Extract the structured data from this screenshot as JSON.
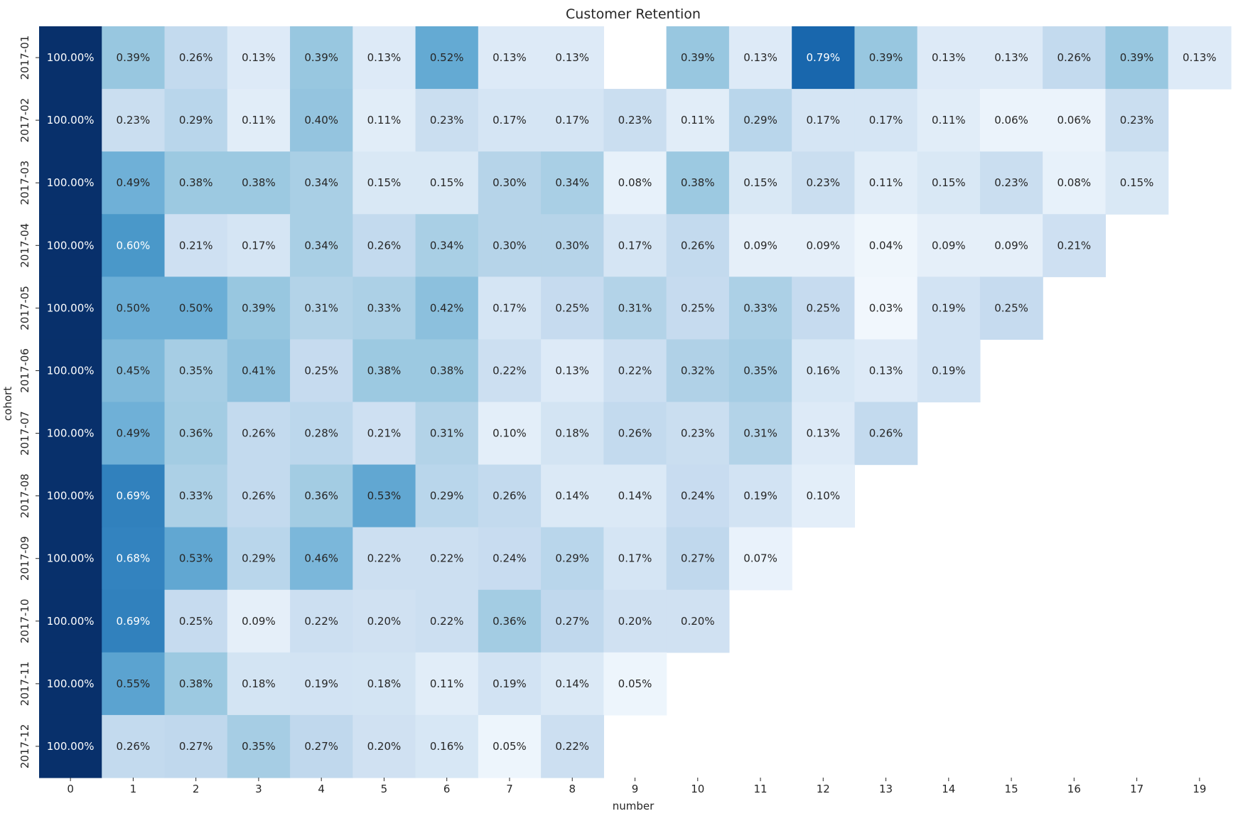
{
  "chart_data": {
    "type": "heatmap",
    "title": "Customer Retention",
    "xlabel": "number",
    "ylabel": "cohort",
    "colormap": "Blues",
    "value_range": [
      0,
      0.01
    ],
    "columns": [
      "0",
      "1",
      "2",
      "3",
      "4",
      "5",
      "6",
      "7",
      "8",
      "9",
      "10",
      "11",
      "12",
      "13",
      "14",
      "15",
      "16",
      "17",
      "19"
    ],
    "rows": [
      "2017-01",
      "2017-02",
      "2017-03",
      "2017-04",
      "2017-05",
      "2017-06",
      "2017-07",
      "2017-08",
      "2017-09",
      "2017-10",
      "2017-11",
      "2017-12"
    ],
    "values": [
      [
        "100.00%",
        "0.39%",
        "0.26%",
        "0.13%",
        "0.39%",
        "0.13%",
        "0.52%",
        "0.13%",
        "0.13%",
        null,
        "0.39%",
        "0.13%",
        "0.79%",
        "0.39%",
        "0.13%",
        "0.13%",
        "0.26%",
        "0.39%",
        "0.13%"
      ],
      [
        "100.00%",
        "0.23%",
        "0.29%",
        "0.11%",
        "0.40%",
        "0.11%",
        "0.23%",
        "0.17%",
        "0.17%",
        "0.23%",
        "0.11%",
        "0.29%",
        "0.17%",
        "0.17%",
        "0.11%",
        "0.06%",
        "0.06%",
        "0.23%",
        null
      ],
      [
        "100.00%",
        "0.49%",
        "0.38%",
        "0.38%",
        "0.34%",
        "0.15%",
        "0.15%",
        "0.30%",
        "0.34%",
        "0.08%",
        "0.38%",
        "0.15%",
        "0.23%",
        "0.11%",
        "0.15%",
        "0.23%",
        "0.08%",
        "0.15%",
        null
      ],
      [
        "100.00%",
        "0.60%",
        "0.21%",
        "0.17%",
        "0.34%",
        "0.26%",
        "0.34%",
        "0.30%",
        "0.30%",
        "0.17%",
        "0.26%",
        "0.09%",
        "0.09%",
        "0.04%",
        "0.09%",
        "0.09%",
        "0.21%",
        null,
        null
      ],
      [
        "100.00%",
        "0.50%",
        "0.50%",
        "0.39%",
        "0.31%",
        "0.33%",
        "0.42%",
        "0.17%",
        "0.25%",
        "0.31%",
        "0.25%",
        "0.33%",
        "0.25%",
        "0.03%",
        "0.19%",
        "0.25%",
        null,
        null,
        null
      ],
      [
        "100.00%",
        "0.45%",
        "0.35%",
        "0.41%",
        "0.25%",
        "0.38%",
        "0.38%",
        "0.22%",
        "0.13%",
        "0.22%",
        "0.32%",
        "0.35%",
        "0.16%",
        "0.13%",
        "0.19%",
        null,
        null,
        null,
        null
      ],
      [
        "100.00%",
        "0.49%",
        "0.36%",
        "0.26%",
        "0.28%",
        "0.21%",
        "0.31%",
        "0.10%",
        "0.18%",
        "0.26%",
        "0.23%",
        "0.31%",
        "0.13%",
        "0.26%",
        null,
        null,
        null,
        null,
        null
      ],
      [
        "100.00%",
        "0.69%",
        "0.33%",
        "0.26%",
        "0.36%",
        "0.53%",
        "0.29%",
        "0.26%",
        "0.14%",
        "0.14%",
        "0.24%",
        "0.19%",
        "0.10%",
        null,
        null,
        null,
        null,
        null,
        null
      ],
      [
        "100.00%",
        "0.68%",
        "0.53%",
        "0.29%",
        "0.46%",
        "0.22%",
        "0.22%",
        "0.24%",
        "0.29%",
        "0.17%",
        "0.27%",
        "0.07%",
        null,
        null,
        null,
        null,
        null,
        null,
        null
      ],
      [
        "100.00%",
        "0.69%",
        "0.25%",
        "0.09%",
        "0.22%",
        "0.20%",
        "0.22%",
        "0.36%",
        "0.27%",
        "0.20%",
        "0.20%",
        null,
        null,
        null,
        null,
        null,
        null,
        null,
        null
      ],
      [
        "100.00%",
        "0.55%",
        "0.38%",
        "0.18%",
        "0.19%",
        "0.18%",
        "0.11%",
        "0.19%",
        "0.14%",
        "0.05%",
        null,
        null,
        null,
        null,
        null,
        null,
        null,
        null,
        null
      ],
      [
        "100.00%",
        "0.26%",
        "0.27%",
        "0.35%",
        "0.27%",
        "0.20%",
        "0.16%",
        "0.05%",
        "0.22%",
        null,
        null,
        null,
        null,
        null,
        null,
        null,
        null,
        null,
        null
      ]
    ]
  }
}
